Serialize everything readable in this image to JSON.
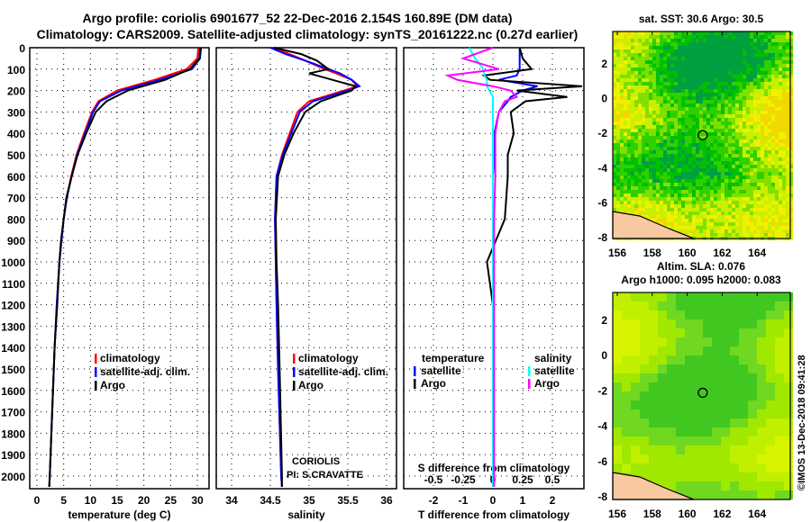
{
  "title_line1": "Argo profile: coriolis 6901677_52 22-Dec-2016 2.154S 160.89E (DM data)",
  "title_line2": "Climatology: CARS2009. Satellite-adjusted climatology: synTS_20161222.nc (0.27d earlier)",
  "side_stamp": "©IMOS 13-Dec-2018 09:41:28",
  "colors": {
    "climatology": "#ff0000",
    "satellite": "#0000ff",
    "argo": "#000000",
    "sal_satellite": "#00ffff",
    "sal_argo": "#ff00ff"
  },
  "chart_data": [
    {
      "type": "line",
      "name": "temperature",
      "xlabel": "temperature (deg C)",
      "xlim": [
        -1.5,
        32
      ],
      "ylim": [
        0,
        2050
      ],
      "yticks": [
        0,
        100,
        200,
        300,
        400,
        500,
        600,
        700,
        800,
        900,
        1000,
        1100,
        1200,
        1300,
        1400,
        1500,
        1600,
        1700,
        1800,
        1900,
        2000
      ],
      "xticks": [
        0,
        5,
        10,
        15,
        20,
        25,
        30
      ],
      "legend": [
        "climatology",
        "satellite-adj. clim.",
        "Argo"
      ],
      "depth": [
        0,
        50,
        100,
        150,
        200,
        250,
        300,
        400,
        500,
        600,
        700,
        800,
        900,
        1000,
        1200,
        1400,
        1600,
        1800,
        2000,
        2050
      ],
      "series": [
        {
          "name": "climatology",
          "values": [
            30.2,
            30,
            28,
            22,
            15,
            11.5,
            10.3,
            8.8,
            7.4,
            6.4,
            5.6,
            5,
            4.6,
            4.2,
            3.7,
            3.3,
            3,
            2.7,
            2.4,
            2.3
          ]
        },
        {
          "name": "satellite-adj. clim.",
          "values": [
            30.7,
            30.5,
            29,
            23,
            15.8,
            11.8,
            10.5,
            9,
            7.5,
            6.5,
            5.6,
            5,
            4.6,
            4.2,
            3.7,
            3.3,
            3,
            2.7,
            2.4,
            2.3
          ]
        },
        {
          "name": "Argo",
          "values": [
            30.5,
            30.4,
            28.6,
            24,
            17,
            13,
            11,
            9.2,
            7.6,
            6.5,
            5.5,
            5,
            4.5,
            4.2,
            3.8,
            3.3,
            3,
            2.7,
            2.4,
            2.3
          ]
        }
      ]
    },
    {
      "type": "line",
      "name": "salinity",
      "xlabel": "salinity",
      "xlim": [
        33.8,
        36.1
      ],
      "xticks": [
        34,
        34.5,
        35,
        35.5,
        36
      ],
      "legend": [
        "climatology",
        "satellite-adj. clim.",
        "Argo"
      ],
      "annotation": [
        "CORIOLIS",
        "PI: S.CRAVATTE"
      ],
      "depth": [
        0,
        30,
        60,
        100,
        120,
        150,
        180,
        200,
        250,
        300,
        400,
        500,
        600,
        800,
        1000,
        1200,
        1500,
        2000,
        2050
      ],
      "series": [
        {
          "name": "climatology",
          "values": [
            34.55,
            34.75,
            34.95,
            35.2,
            35.35,
            35.55,
            35.62,
            35.45,
            35.0,
            34.85,
            34.75,
            34.65,
            34.58,
            34.56,
            34.57,
            34.58,
            34.6,
            34.64,
            34.65
          ]
        },
        {
          "name": "satellite-adj. clim.",
          "values": [
            34.5,
            34.7,
            34.95,
            35.25,
            35.4,
            35.55,
            35.65,
            35.5,
            35.05,
            34.88,
            34.77,
            34.66,
            34.58,
            34.56,
            34.57,
            34.58,
            34.6,
            34.64,
            34.65
          ]
        },
        {
          "name": "Argo",
          "values": [
            34.55,
            34.9,
            35.1,
            35.25,
            35.0,
            35.3,
            35.6,
            35.55,
            35.15,
            34.95,
            34.8,
            34.68,
            34.6,
            34.57,
            34.58,
            34.6,
            34.62,
            34.65,
            34.65
          ]
        }
      ]
    },
    {
      "type": "line",
      "name": "differences",
      "xlabel": "T difference from climatology",
      "xlabel2": "S difference from climatology",
      "xlim": [
        -3,
        3
      ],
      "xticks": [
        -2,
        -1,
        0,
        1,
        2
      ],
      "s_xticks": [
        -0.5,
        -0.25,
        0,
        0.25,
        0.5
      ],
      "legend_t_title": "temperature",
      "legend_s_title": "salinity",
      "legend_items": [
        "satellite",
        "Argo"
      ],
      "depth": [
        0,
        50,
        100,
        130,
        150,
        180,
        200,
        230,
        250,
        300,
        400,
        500,
        600,
        800,
        1000,
        1100,
        1200,
        1500,
        2000,
        2050
      ],
      "series": [
        {
          "name": "T satellite",
          "kind": "t",
          "values": [
            0.9,
            0.9,
            0.9,
            0.8,
            0.2,
            1.5,
            1.0,
            0.6,
            0.5,
            0.2,
            0.05,
            0.05,
            0.0,
            0.0,
            0.0,
            0.0,
            0.0,
            0,
            0,
            0
          ]
        },
        {
          "name": "T Argo",
          "kind": "t",
          "values": [
            0.9,
            1.0,
            1.3,
            -0.3,
            -0.1,
            3.0,
            0.8,
            2.5,
            1.1,
            0.6,
            0.7,
            0.5,
            0.5,
            0.4,
            -0.2,
            -0.1,
            0.0,
            0,
            0,
            0
          ]
        },
        {
          "name": "S satellite",
          "kind": "s",
          "values": [
            -0.2,
            -0.15,
            -0.08,
            -0.07,
            -0.05,
            -0.05,
            -0.03,
            0.0,
            0.0,
            0.0,
            0.0,
            0.0,
            0.0,
            0,
            0,
            0,
            0,
            0,
            0,
            0
          ]
        },
        {
          "name": "S Argo",
          "kind": "s",
          "values": [
            0.0,
            -0.25,
            0.05,
            -0.38,
            -0.3,
            0.0,
            0.15,
            0.2,
            0.1,
            0.05,
            0.02,
            0.02,
            0.02,
            0.01,
            0.01,
            0.01,
            0.01,
            0.01,
            0.01,
            0.01
          ]
        }
      ]
    },
    {
      "type": "heatmap",
      "name": "sst-map",
      "title": "sat. SST: 30.6  Argo: 30.5",
      "xticks": [
        156,
        158,
        160,
        162,
        164
      ],
      "yticks": [
        2,
        0,
        -2,
        -4,
        -6,
        -8
      ],
      "xlim": [
        155.8,
        166
      ],
      "ylim": [
        -8.1,
        3.9
      ],
      "argo_position": [
        160.89,
        -2.154
      ]
    },
    {
      "type": "heatmap",
      "name": "sla-map",
      "title": "Altim. SLA: 0.076",
      "subtitle": "Argo h1000: 0.095 h2000: 0.083",
      "xticks": [
        156,
        158,
        160,
        162,
        164
      ],
      "yticks": [
        2,
        0,
        -2,
        -4,
        -6,
        -8
      ],
      "xlim": [
        155.8,
        166
      ],
      "ylim": [
        -8.1,
        3.7
      ],
      "argo_position": [
        160.89,
        -2.154
      ]
    }
  ]
}
